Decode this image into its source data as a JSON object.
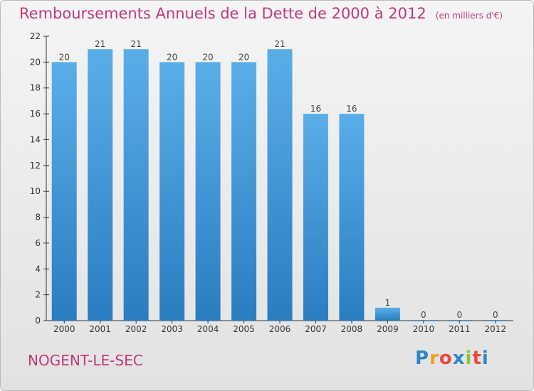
{
  "title": "Remboursements Annuels de la Dette de 2000 à 2012",
  "unit_note": "(en milliers d'€)",
  "city": "NOGENT-LE-SEC",
  "logo": {
    "letters": [
      "P",
      "r",
      "o",
      "x",
      "i",
      "t",
      "i"
    ],
    "colors": [
      "#2e86c8",
      "#f0a020",
      "#e84a3a",
      "#2e86c8",
      "#8cc63e",
      "#e84a3a",
      "#2e86c8"
    ]
  },
  "colors": {
    "bar_top": "#5aaee8",
    "bar_bottom": "#2a7dc0",
    "accent": "#c0397a"
  },
  "chart_data": {
    "type": "bar",
    "categories": [
      "2000",
      "2001",
      "2002",
      "2003",
      "2004",
      "2005",
      "2006",
      "2007",
      "2008",
      "2009",
      "2010",
      "2011",
      "2012"
    ],
    "values": [
      20,
      21,
      21,
      20,
      20,
      20,
      21,
      16,
      16,
      1,
      0,
      0,
      0
    ],
    "data_labels": [
      "20",
      "21",
      "21",
      "20",
      "20",
      "20",
      "21",
      "16",
      "16",
      "1",
      "0",
      "0",
      "0"
    ],
    "yticks": [
      0,
      2,
      4,
      6,
      8,
      10,
      12,
      14,
      16,
      18,
      20,
      22
    ],
    "ylim": [
      0,
      22
    ],
    "title": "Remboursements Annuels de la Dette de 2000 à 2012",
    "xlabel": "",
    "ylabel": "",
    "grid": false,
    "legend": "none"
  }
}
